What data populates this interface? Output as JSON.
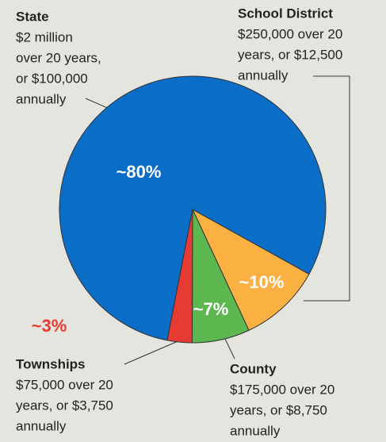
{
  "chart_data": {
    "type": "pie",
    "categories": [
      "State",
      "School District",
      "County",
      "Townships"
    ],
    "descriptions": [
      [
        "$2 million",
        "over 20 years,",
        "or $100,000",
        "annually"
      ],
      [
        "$250,000 over 20",
        "years, or $12,500",
        "annually"
      ],
      [
        "$175,000 over 20",
        "years, or $8,750",
        "annually"
      ],
      [
        "$75,000 over 20",
        "years, or $3,750",
        "annually"
      ]
    ],
    "values": [
      80,
      10,
      7,
      3
    ],
    "value_labels": [
      "~80%",
      "~10%",
      "~7%",
      "~3%"
    ],
    "colors": [
      "#0a6dc6",
      "#fbb042",
      "#5cb84e",
      "#e63b33"
    ]
  }
}
